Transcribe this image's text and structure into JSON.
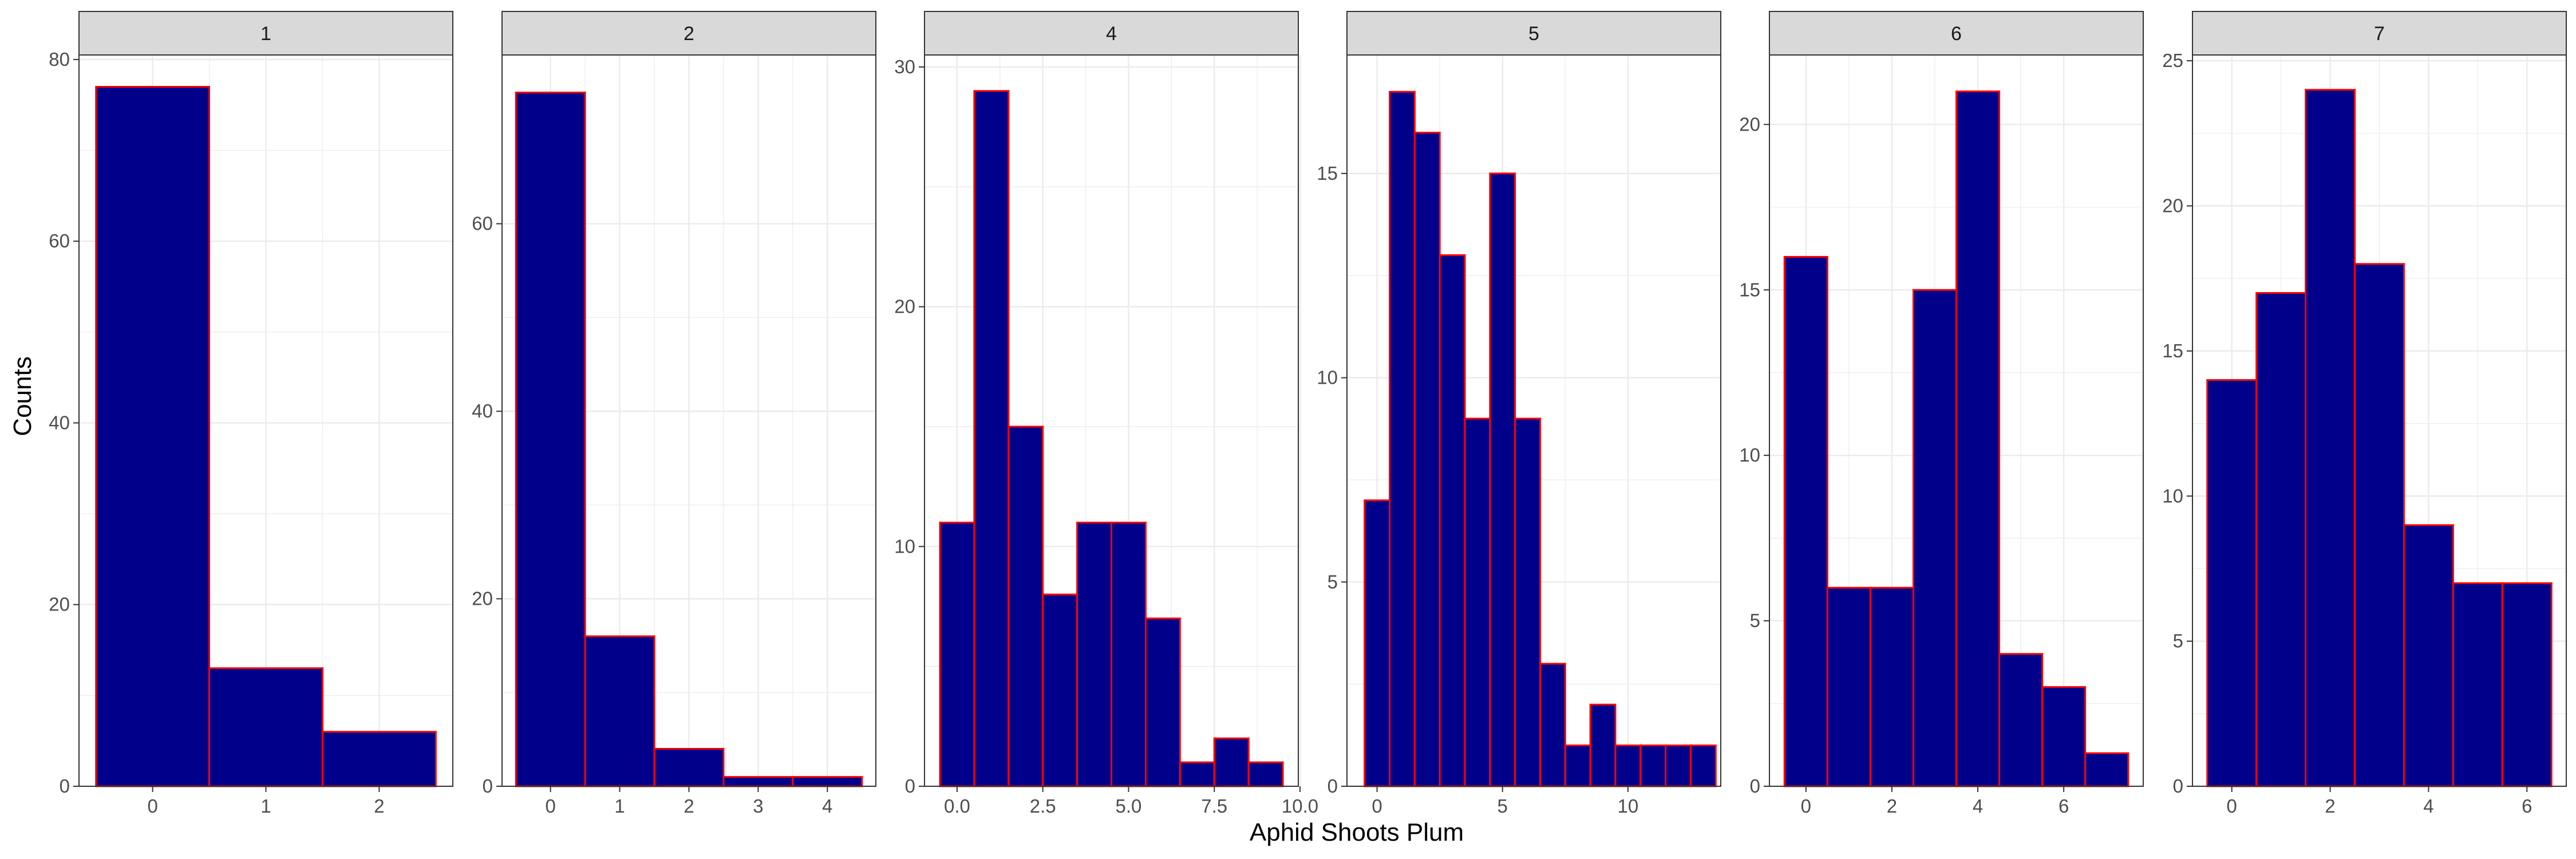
{
  "chart_data": {
    "type": "bar",
    "xlabel": "Aphid Shoots Plum",
    "ylabel": "Counts",
    "colors": {
      "fill": "#00008B",
      "stroke": "#FF0000",
      "strip": "#D9D9D9",
      "grid": "#EBEBEB",
      "panel_border": "#333333"
    },
    "grid": true,
    "facets": [
      {
        "label": "1",
        "xlim": [
          -0.65,
          2.65
        ],
        "ylim": [
          0,
          80.5
        ],
        "xticks": [
          0,
          1,
          2
        ],
        "xtick_labels": [
          "0",
          "1",
          "2"
        ],
        "yticks": [
          0,
          20,
          40,
          60,
          80
        ],
        "ytick_labels": [
          "0",
          "20",
          "40",
          "60",
          "80"
        ],
        "bins": [
          {
            "x": 0,
            "count": 77
          },
          {
            "x": 1,
            "count": 13
          },
          {
            "x": 2,
            "count": 6
          }
        ]
      },
      {
        "label": "2",
        "xlim": [
          -0.7,
          4.7
        ],
        "ylim": [
          0,
          78
        ],
        "xticks": [
          0,
          1,
          2,
          3,
          4
        ],
        "xtick_labels": [
          "0",
          "1",
          "2",
          "3",
          "4"
        ],
        "yticks": [
          0,
          20,
          40,
          60
        ],
        "ytick_labels": [
          "0",
          "20",
          "40",
          "60"
        ],
        "bins": [
          {
            "x": 0,
            "count": 74
          },
          {
            "x": 1,
            "count": 16
          },
          {
            "x": 2,
            "count": 4
          },
          {
            "x": 3,
            "count": 1
          },
          {
            "x": 4,
            "count": 1
          }
        ]
      },
      {
        "label": "4",
        "xlim": [
          -0.95,
          9.95
        ],
        "ylim": [
          0,
          30.5
        ],
        "xticks": [
          0,
          2.5,
          5,
          7.5,
          10
        ],
        "xtick_labels": [
          "0.0",
          "2.5",
          "5.0",
          "7.5",
          "10.0"
        ],
        "yticks": [
          0,
          10,
          20,
          30
        ],
        "ytick_labels": [
          "0",
          "10",
          "20",
          "30"
        ],
        "bins": [
          {
            "x": 0,
            "count": 11
          },
          {
            "x": 1,
            "count": 29
          },
          {
            "x": 2,
            "count": 15
          },
          {
            "x": 3,
            "count": 8
          },
          {
            "x": 4,
            "count": 11
          },
          {
            "x": 5,
            "count": 11
          },
          {
            "x": 6,
            "count": 7
          },
          {
            "x": 7,
            "count": 1
          },
          {
            "x": 8,
            "count": 2
          },
          {
            "x": 9,
            "count": 1
          }
        ]
      },
      {
        "label": "5",
        "xlim": [
          -1.2,
          13.7
        ],
        "ylim": [
          0,
          17.9
        ],
        "xticks": [
          0,
          5,
          10
        ],
        "xtick_labels": [
          "0",
          "5",
          "10"
        ],
        "yticks": [
          0,
          5,
          10,
          15
        ],
        "ytick_labels": [
          "0",
          "5",
          "10",
          "15"
        ],
        "bins": [
          {
            "x": 0,
            "count": 7
          },
          {
            "x": 1,
            "count": 17
          },
          {
            "x": 2,
            "count": 16
          },
          {
            "x": 3,
            "count": 13
          },
          {
            "x": 4,
            "count": 9
          },
          {
            "x": 5,
            "count": 15
          },
          {
            "x": 6,
            "count": 9
          },
          {
            "x": 7,
            "count": 3
          },
          {
            "x": 8,
            "count": 1
          },
          {
            "x": 9,
            "count": 2
          },
          {
            "x": 10,
            "count": 1
          },
          {
            "x": 11,
            "count": 1
          },
          {
            "x": 12,
            "count": 1
          },
          {
            "x": 13,
            "count": 1
          }
        ]
      },
      {
        "label": "6",
        "xlim": [
          -0.85,
          7.85
        ],
        "ylim": [
          0,
          22.1
        ],
        "xticks": [
          0,
          2,
          4,
          6
        ],
        "xtick_labels": [
          "0",
          "2",
          "4",
          "6"
        ],
        "yticks": [
          0,
          5,
          10,
          15,
          20
        ],
        "ytick_labels": [
          "0",
          "5",
          "10",
          "15",
          "20"
        ],
        "bins": [
          {
            "x": 0,
            "count": 16
          },
          {
            "x": 1,
            "count": 6
          },
          {
            "x": 2,
            "count": 6
          },
          {
            "x": 3,
            "count": 15
          },
          {
            "x": 4,
            "count": 21
          },
          {
            "x": 5,
            "count": 4
          },
          {
            "x": 6,
            "count": 3
          },
          {
            "x": 7,
            "count": 1
          }
        ]
      },
      {
        "label": "7",
        "xlim": [
          -0.8,
          6.8
        ],
        "ylim": [
          0,
          25.2
        ],
        "xticks": [
          0,
          2,
          4,
          6
        ],
        "xtick_labels": [
          "0",
          "2",
          "4",
          "6"
        ],
        "yticks": [
          0,
          5,
          10,
          15,
          20,
          25
        ],
        "ytick_labels": [
          "0",
          "5",
          "10",
          "15",
          "20",
          "25"
        ],
        "bins": [
          {
            "x": 0,
            "count": 14
          },
          {
            "x": 1,
            "count": 17
          },
          {
            "x": 2,
            "count": 24
          },
          {
            "x": 3,
            "count": 18
          },
          {
            "x": 4,
            "count": 9
          },
          {
            "x": 5,
            "count": 7
          },
          {
            "x": 6,
            "count": 7
          }
        ]
      }
    ]
  }
}
